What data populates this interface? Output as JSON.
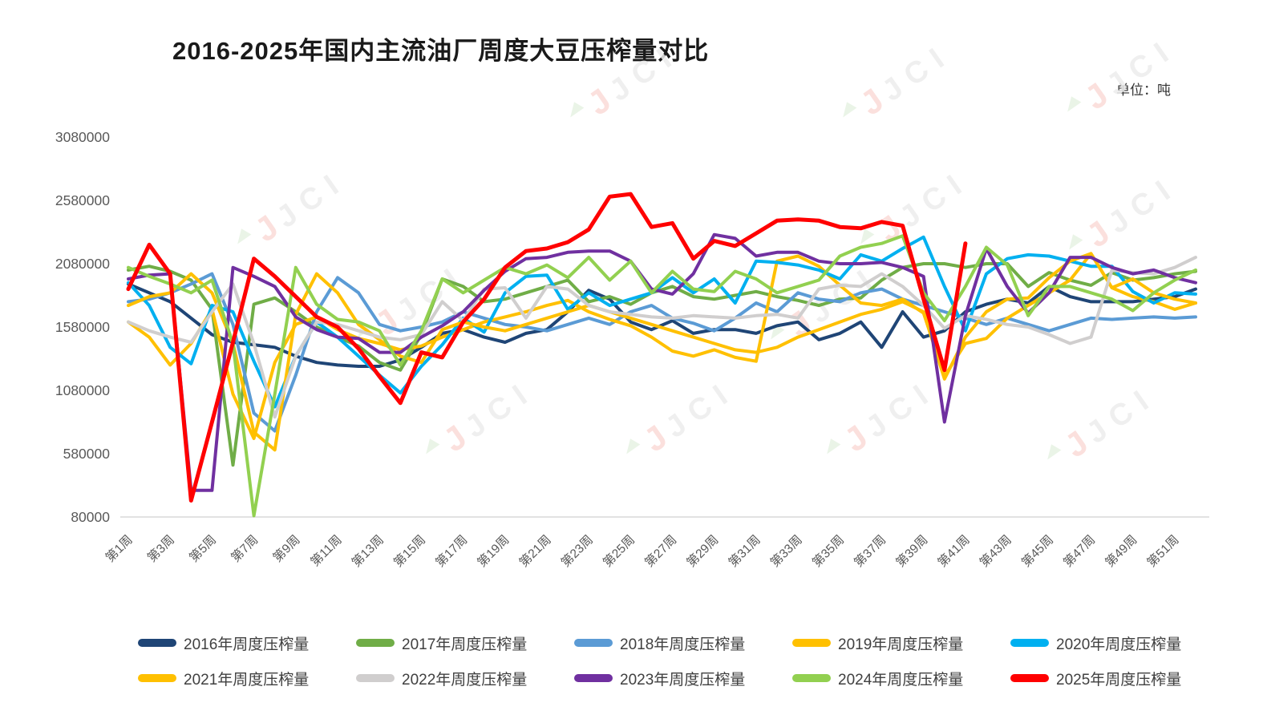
{
  "chart": {
    "title": "2016-2025年国内主流油厂周度大豆压榨量对比",
    "unit_label": "单位：吨",
    "watermark_text": "JCI",
    "axis_color": "#d9d9d9",
    "tick_label_color": "#595959"
  },
  "chart_data": {
    "type": "line",
    "title": "2016-2025年国内主流油厂周度大豆压榨量对比",
    "unit": "吨",
    "xlabel": "周",
    "ylabel": "",
    "grid": false,
    "legend_position": "bottom",
    "ylim": [
      80000,
      3080000
    ],
    "y_ticks": [
      80000,
      580000,
      1080000,
      1580000,
      2080000,
      2580000,
      3080000
    ],
    "weeks_total": 52,
    "x_tick_labels": [
      "第1周",
      "第3周",
      "第5周",
      "第7周",
      "第9周",
      "第11周",
      "第13周",
      "第15周",
      "第17周",
      "第19周",
      "第21周",
      "第23周",
      "第25周",
      "第27周",
      "第29周",
      "第31周",
      "第33周",
      "第35周",
      "第37周",
      "第39周",
      "第41周",
      "第43周",
      "第45周",
      "第47周",
      "第49周",
      "第51周"
    ],
    "series": [
      {
        "name": "2016年周度压榨量",
        "color": "#1f4576",
        "values": [
          1920000,
          1850000,
          1780000,
          1650000,
          1520000,
          1460000,
          1440000,
          1420000,
          1350000,
          1300000,
          1280000,
          1270000,
          1270000,
          1320000,
          1420000,
          1530000,
          1560000,
          1500000,
          1460000,
          1530000,
          1560000,
          1700000,
          1870000,
          1800000,
          1620000,
          1560000,
          1630000,
          1530000,
          1560000,
          1560000,
          1530000,
          1590000,
          1620000,
          1480000,
          1530000,
          1620000,
          1420000,
          1700000,
          1500000,
          1550000,
          1700000,
          1760000,
          1800000,
          1770000,
          1900000,
          1820000,
          1780000,
          1780000,
          1780000,
          1800000,
          1820000,
          1880000
        ]
      },
      {
        "name": "2017年周度压榨量",
        "color": "#70ad47",
        "values": [
          2030000,
          2060000,
          2020000,
          1950000,
          1720000,
          490000,
          1760000,
          1810000,
          1700000,
          1580000,
          1500000,
          1430000,
          1300000,
          1240000,
          1520000,
          1960000,
          1900000,
          1780000,
          1800000,
          1850000,
          1900000,
          1950000,
          1780000,
          1820000,
          1760000,
          1850000,
          1900000,
          1820000,
          1800000,
          1830000,
          1860000,
          1820000,
          1790000,
          1750000,
          1800000,
          1810000,
          1950000,
          2050000,
          2080000,
          2080000,
          2050000,
          2080000,
          2080000,
          1900000,
          2010000,
          1950000,
          1910000,
          2010000,
          1950000,
          1970000,
          2000000,
          2020000
        ]
      },
      {
        "name": "2018年周度压榨量",
        "color": "#5b9bd5",
        "values": [
          1780000,
          1800000,
          1850000,
          1920000,
          2000000,
          1600000,
          900000,
          760000,
          1200000,
          1700000,
          1970000,
          1850000,
          1600000,
          1550000,
          1580000,
          1620000,
          1700000,
          1650000,
          1600000,
          1580000,
          1550000,
          1600000,
          1650000,
          1600000,
          1700000,
          1750000,
          1650000,
          1610000,
          1550000,
          1650000,
          1770000,
          1700000,
          1850000,
          1800000,
          1780000,
          1850000,
          1880000,
          1800000,
          1750000,
          1700000,
          1650000,
          1600000,
          1650000,
          1600000,
          1550000,
          1600000,
          1650000,
          1640000,
          1650000,
          1660000,
          1650000,
          1660000
        ]
      },
      {
        "name": "2019年周度压榨量",
        "color": "#ffc000",
        "values": [
          1620000,
          1500000,
          1280000,
          1450000,
          1720000,
          1050000,
          700000,
          1300000,
          1600000,
          1660000,
          1560000,
          1490000,
          1450000,
          1400000,
          1430000,
          1500000,
          1560000,
          1620000,
          1660000,
          1700000,
          1750000,
          1790000,
          1700000,
          1640000,
          1590000,
          1500000,
          1390000,
          1350000,
          1400000,
          1340000,
          1310000,
          2100000,
          2140000,
          2060000,
          1910000,
          1770000,
          1750000,
          1800000,
          1690000,
          1190000,
          1450000,
          1490000,
          1650000,
          1750000,
          1850000,
          1950000,
          2160000,
          1890000,
          1820000,
          1780000,
          1720000,
          1770000
        ]
      },
      {
        "name": "2020年周度压榨量",
        "color": "#00b0f0",
        "values": [
          1930000,
          1750000,
          1420000,
          1290000,
          1750000,
          1700000,
          1310000,
          950000,
          1350000,
          1620000,
          1500000,
          1350000,
          1200000,
          1060000,
          1270000,
          1440000,
          1650000,
          1540000,
          1850000,
          1980000,
          1990000,
          1720000,
          1850000,
          1750000,
          1800000,
          1850000,
          1970000,
          1850000,
          1960000,
          1770000,
          2100000,
          2090000,
          2070000,
          2030000,
          1960000,
          2150000,
          2100000,
          2200000,
          2290000,
          1900000,
          1550000,
          2000000,
          2120000,
          2150000,
          2140000,
          2100000,
          2060000,
          2060000,
          1860000,
          1770000,
          1850000,
          1840000
        ]
      },
      {
        "name": "2021年周度压榨量",
        "color": "#ffc000",
        "values": [
          1750000,
          1820000,
          1850000,
          2000000,
          1850000,
          1450000,
          750000,
          610000,
          1680000,
          2000000,
          1850000,
          1600000,
          1480000,
          1350000,
          1300000,
          1560000,
          1620000,
          1580000,
          1550000,
          1600000,
          1650000,
          1700000,
          1750000,
          1700000,
          1650000,
          1600000,
          1550000,
          1500000,
          1450000,
          1400000,
          1380000,
          1420000,
          1500000,
          1560000,
          1620000,
          1680000,
          1720000,
          1780000,
          1700000,
          1170000,
          1500000,
          1700000,
          1800000,
          1810000,
          1970000,
          2100000,
          2160000,
          1890000,
          1960000,
          1850000,
          1800000,
          1770000
        ]
      },
      {
        "name": "2022年周度压榨量",
        "color": "#d0cece",
        "values": [
          1620000,
          1550000,
          1500000,
          1460000,
          1700000,
          1920000,
          1450000,
          870000,
          1350000,
          1620000,
          1600000,
          1550000,
          1500000,
          1480000,
          1520000,
          1780000,
          1630000,
          1880000,
          1890000,
          1650000,
          1900000,
          1880000,
          1750000,
          1700000,
          1680000,
          1660000,
          1650000,
          1670000,
          1660000,
          1650000,
          1670000,
          1680000,
          1650000,
          1880000,
          1910000,
          1900000,
          2000000,
          1900000,
          1750000,
          1570000,
          1670000,
          1640000,
          1600000,
          1580000,
          1520000,
          1450000,
          1500000,
          2030000,
          2010000,
          2000000,
          2050000,
          2130000
        ]
      },
      {
        "name": "2023年周度压榨量",
        "color": "#7030a0",
        "values": [
          1960000,
          1990000,
          2000000,
          290000,
          290000,
          2050000,
          1980000,
          1900000,
          1660000,
          1560000,
          1500000,
          1490000,
          1380000,
          1380000,
          1500000,
          1590000,
          1700000,
          1870000,
          2020000,
          2120000,
          2130000,
          2170000,
          2180000,
          2180000,
          2100000,
          1880000,
          1840000,
          2000000,
          2310000,
          2280000,
          2140000,
          2170000,
          2170000,
          2100000,
          2080000,
          2080000,
          2090000,
          2050000,
          1980000,
          830000,
          1670000,
          2200000,
          1900000,
          1690000,
          1850000,
          2130000,
          2130000,
          2050000,
          2000000,
          2030000,
          1970000,
          1930000
        ]
      },
      {
        "name": "2024年周度压榨量",
        "color": "#92d050",
        "values": [
          2050000,
          1980000,
          1920000,
          1850000,
          1950000,
          1450000,
          90000,
          1050000,
          2050000,
          1760000,
          1640000,
          1620000,
          1550000,
          1280000,
          1550000,
          1960000,
          1850000,
          1950000,
          2050000,
          2000000,
          2070000,
          1970000,
          2130000,
          1950000,
          2100000,
          1850000,
          2020000,
          1880000,
          1860000,
          2020000,
          1960000,
          1850000,
          1900000,
          1950000,
          2140000,
          2210000,
          2240000,
          2300000,
          1850000,
          1630000,
          1900000,
          2210000,
          2070000,
          1670000,
          1900000,
          1900000,
          1850000,
          1800000,
          1710000,
          1850000,
          1950000,
          2030000
        ]
      },
      {
        "name": "2025年周度压榨量",
        "color": "#ff0000",
        "values": [
          1880000,
          2230000,
          2000000,
          210000,
          830000,
          1460000,
          2120000,
          1980000,
          1820000,
          1660000,
          1580000,
          1410000,
          1190000,
          980000,
          1380000,
          1340000,
          1620000,
          1800000,
          2050000,
          2180000,
          2200000,
          2250000,
          2350000,
          2610000,
          2630000,
          2370000,
          2400000,
          2120000,
          2260000,
          2220000,
          2320000,
          2420000,
          2430000,
          2420000,
          2370000,
          2360000,
          2410000,
          2380000,
          1800000,
          1240000,
          2240000
        ]
      }
    ]
  }
}
